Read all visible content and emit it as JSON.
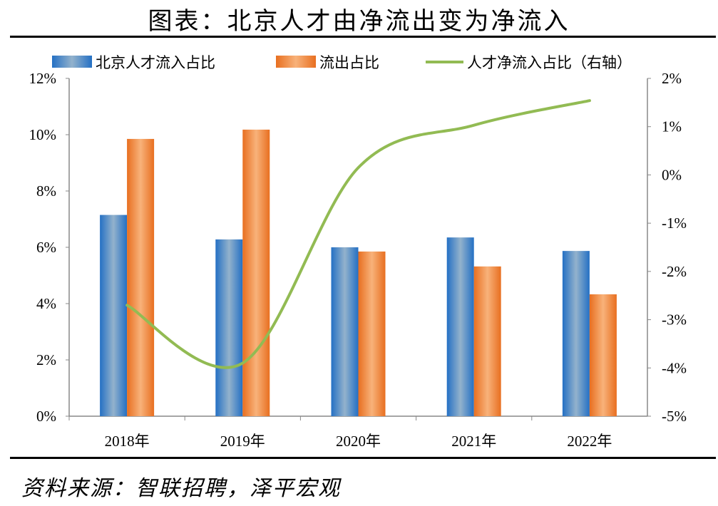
{
  "title": "图表：北京人才由净流出变为净流入",
  "source": "资料来源：智联招聘，泽平宏观",
  "colors": {
    "inflow": "#2E75C6",
    "outflow": "#ED7D31",
    "net": "#92BB53"
  },
  "chart_data": {
    "type": "bar+line",
    "categories": [
      "2018年",
      "2019年",
      "2020年",
      "2021年",
      "2022年"
    ],
    "series": [
      {
        "name": "北京人才流入占比",
        "type": "bar",
        "axis": "left",
        "values": [
          7.15,
          6.28,
          6.0,
          6.35,
          5.87
        ]
      },
      {
        "name": "流出占比",
        "type": "bar",
        "axis": "left",
        "values": [
          9.85,
          10.18,
          5.85,
          5.32,
          4.33
        ]
      },
      {
        "name": "人才净流入占比（右轴）",
        "type": "line",
        "axis": "right",
        "values": [
          -2.7,
          -3.9,
          0.15,
          1.03,
          1.54
        ]
      }
    ],
    "left_axis": {
      "ylim": [
        0,
        12
      ],
      "ticks": [
        "0%",
        "2%",
        "4%",
        "6%",
        "8%",
        "10%",
        "12%"
      ]
    },
    "right_axis": {
      "ylim": [
        -5,
        2
      ],
      "ticks": [
        "-5%",
        "-4%",
        "-3%",
        "-2%",
        "-1%",
        "0%",
        "1%",
        "2%"
      ]
    },
    "legend": "top",
    "grid": false
  }
}
